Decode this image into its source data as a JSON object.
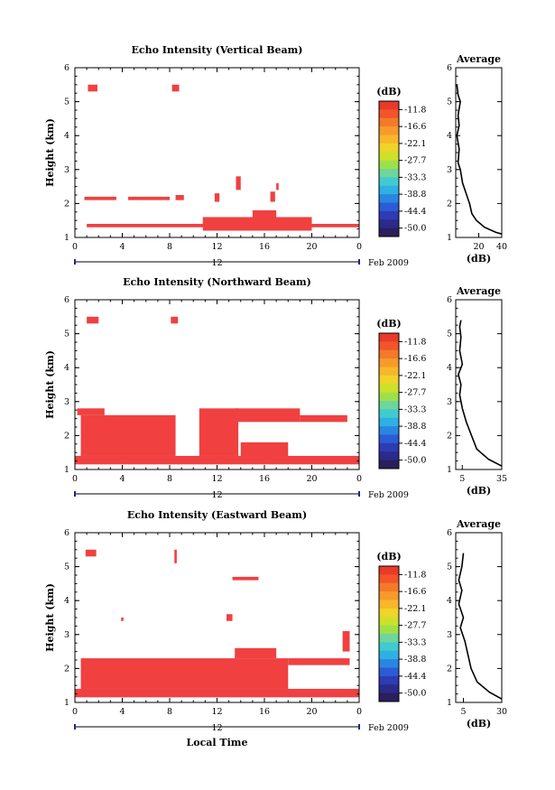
{
  "figure": {
    "xlabel": "Local Time",
    "date_label": "Feb 2009",
    "day_label": "12",
    "colorbar_unit": "(dB)",
    "colorbar_ticks": [
      "-11.8",
      "-16.6",
      "-22.1",
      "-27.7",
      "-33.3",
      "-38.8",
      "-44.4",
      "-50.0"
    ],
    "colorbar_colors": [
      "#e83a2a",
      "#f2552a",
      "#f47a2a",
      "#f79a2a",
      "#f8b62a",
      "#f0d42a",
      "#cde02a",
      "#9fe04a",
      "#6ed69a",
      "#40cbd0",
      "#2fb0e4",
      "#2a86e0",
      "#2b5cd6",
      "#2e3cb4",
      "#2a2a8a",
      "#2a1f5c"
    ],
    "avg_title": "Average",
    "avg_xlabel": "(dB)"
  },
  "chart_data": [
    {
      "type": "heatmap",
      "title": "Echo Intensity (Vertical Beam)",
      "xlabel": "Local Time",
      "ylabel": "Height (km)",
      "x_ticks": [
        "0",
        "4",
        "8",
        "12",
        "16",
        "20",
        "0"
      ],
      "xlim": [
        0,
        24
      ],
      "y_ticks": [
        "1",
        "2",
        "3",
        "4",
        "5",
        "6"
      ],
      "ylim": [
        1,
        6
      ],
      "cells": [
        [
          1.3,
          1.4,
          1,
          24
        ],
        [
          1.2,
          1.6,
          10.8,
          20
        ],
        [
          1.35,
          1.8,
          15,
          17
        ],
        [
          2.1,
          2.2,
          0.8,
          3.5
        ],
        [
          2.1,
          2.2,
          4.5,
          8
        ],
        [
          2.1,
          2.25,
          8.5,
          9.2
        ],
        [
          5.3,
          5.5,
          1.1,
          1.9
        ],
        [
          5.3,
          5.5,
          8.2,
          8.8
        ],
        [
          2.4,
          2.8,
          13.6,
          14
        ],
        [
          2.05,
          2.3,
          11.8,
          12.2
        ],
        [
          2.05,
          2.35,
          16.5,
          16.9
        ],
        [
          2.4,
          2.6,
          17,
          17.2
        ]
      ]
    },
    {
      "type": "heatmap",
      "title": "Echo Intensity (Northward Beam)",
      "xlabel": "Local Time",
      "ylabel": "Height (km)",
      "x_ticks": [
        "0",
        "4",
        "8",
        "12",
        "16",
        "20",
        "0"
      ],
      "xlim": [
        0,
        24
      ],
      "y_ticks": [
        "1",
        "2",
        "3",
        "4",
        "5",
        "6"
      ],
      "ylim": [
        1,
        6
      ],
      "cells": [
        [
          1.15,
          1.4,
          0,
          24
        ],
        [
          1.4,
          2.6,
          0.5,
          8.5
        ],
        [
          1.4,
          2.8,
          10.5,
          13.8
        ],
        [
          2.4,
          2.8,
          13.5,
          19
        ],
        [
          2.4,
          2.6,
          19,
          23
        ],
        [
          5.3,
          5.5,
          1,
          2
        ],
        [
          5.3,
          5.5,
          8.1,
          8.7
        ],
        [
          2.6,
          2.8,
          0.2,
          2.5
        ],
        [
          1.2,
          1.8,
          14,
          18
        ]
      ]
    },
    {
      "type": "heatmap",
      "title": "Echo Intensity (Eastward Beam)",
      "xlabel": "Local Time",
      "ylabel": "Height (km)",
      "x_ticks": [
        "0",
        "4",
        "8",
        "12",
        "16",
        "20",
        "0"
      ],
      "xlim": [
        0,
        24
      ],
      "y_ticks": [
        "1",
        "2",
        "3",
        "4",
        "5",
        "6"
      ],
      "ylim": [
        1,
        6
      ],
      "cells": [
        [
          1.15,
          1.4,
          0,
          24
        ],
        [
          1.4,
          2.3,
          0.5,
          18
        ],
        [
          2.3,
          2.6,
          13.5,
          17
        ],
        [
          2.1,
          2.3,
          18,
          23.2
        ],
        [
          4.6,
          4.7,
          13.3,
          15.5
        ],
        [
          3.4,
          3.5,
          3.9,
          4.1
        ],
        [
          3.4,
          3.6,
          12.8,
          13.3
        ],
        [
          5.3,
          5.5,
          0.9,
          1.8
        ],
        [
          5.1,
          5.5,
          8.4,
          8.6
        ],
        [
          2.5,
          3.1,
          22.6,
          23.2
        ]
      ]
    }
  ],
  "averages": [
    {
      "x_ticks": [
        "20",
        "40"
      ],
      "xlim": [
        0,
        40
      ],
      "y_ticks": [
        "1",
        "2",
        "3",
        "4",
        "5",
        "6"
      ],
      "ylim": [
        1,
        6
      ],
      "profile": [
        [
          40,
          1.1
        ],
        [
          35,
          1.15
        ],
        [
          25,
          1.3
        ],
        [
          18,
          1.5
        ],
        [
          14,
          1.7
        ],
        [
          12,
          2.0
        ],
        [
          11,
          2.1
        ],
        [
          9,
          2.3
        ],
        [
          6,
          2.6
        ],
        [
          4,
          3.0
        ],
        [
          2,
          3.2
        ],
        [
          3,
          3.6
        ],
        [
          1,
          4.0
        ],
        [
          3,
          4.3
        ],
        [
          2,
          4.6
        ],
        [
          4,
          5.0
        ],
        [
          2,
          5.2
        ],
        [
          1,
          5.5
        ]
      ]
    },
    {
      "x_ticks": [
        "5",
        "35"
      ],
      "xlim": [
        0,
        35
      ],
      "y_ticks": [
        "1",
        "2",
        "3",
        "4",
        "5",
        "6"
      ],
      "ylim": [
        1,
        6
      ],
      "profile": [
        [
          35,
          1.1
        ],
        [
          25,
          1.3
        ],
        [
          16,
          1.6
        ],
        [
          12,
          2.0
        ],
        [
          8,
          2.4
        ],
        [
          5,
          2.8
        ],
        [
          3,
          3.2
        ],
        [
          4,
          3.5
        ],
        [
          2,
          3.8
        ],
        [
          5,
          4.1
        ],
        [
          3,
          4.5
        ],
        [
          4,
          4.9
        ],
        [
          3,
          5.2
        ],
        [
          4,
          5.4
        ]
      ]
    },
    {
      "x_ticks": [
        "5",
        "30"
      ],
      "xlim": [
        0,
        30
      ],
      "y_ticks": [
        "1",
        "2",
        "3",
        "4",
        "5",
        "6"
      ],
      "ylim": [
        1,
        6
      ],
      "profile": [
        [
          30,
          1.1
        ],
        [
          22,
          1.3
        ],
        [
          14,
          1.6
        ],
        [
          10,
          2.0
        ],
        [
          8,
          2.4
        ],
        [
          6,
          2.8
        ],
        [
          3,
          3.2
        ],
        [
          5,
          3.5
        ],
        [
          2,
          3.9
        ],
        [
          4,
          4.3
        ],
        [
          2,
          4.6
        ],
        [
          4,
          5.0
        ],
        [
          5,
          5.4
        ]
      ]
    }
  ]
}
